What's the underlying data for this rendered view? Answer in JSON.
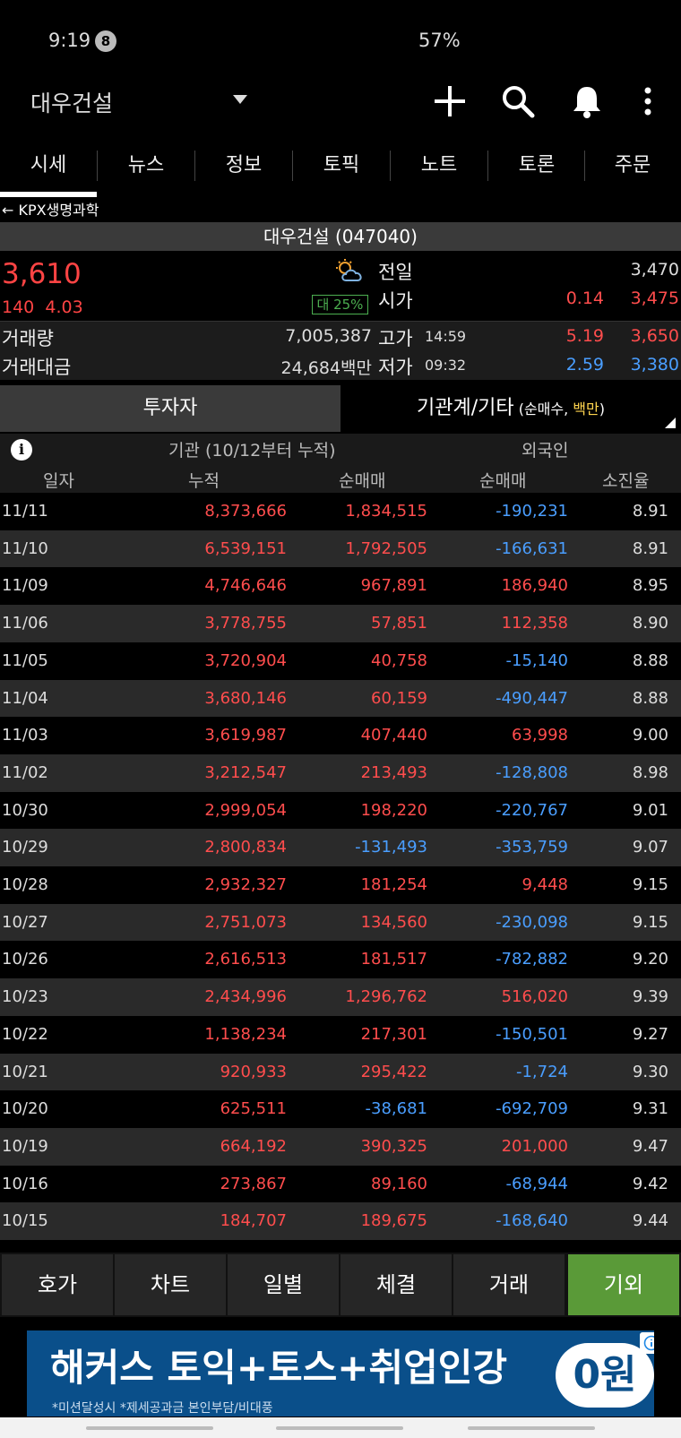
{
  "status_bar": {
    "time": "9:19",
    "notification_count": "8",
    "battery": "57%"
  },
  "app_bar": {
    "stock_name": "대우건설",
    "icons": [
      "plus-icon",
      "search-icon",
      "bell-icon",
      "more-icon"
    ]
  },
  "tabs": [
    {
      "label": "시세",
      "active": true
    },
    {
      "label": "뉴스"
    },
    {
      "label": "정보"
    },
    {
      "label": "토픽"
    },
    {
      "label": "노트"
    },
    {
      "label": "토론"
    },
    {
      "label": "주문"
    }
  ],
  "back_link": "← KPX생명과학",
  "title": "대우건설 (047040)",
  "quote": {
    "price": "3,610",
    "change": "140",
    "change_pct": "4.03",
    "vi_badge": "대 25%",
    "prev_close_label": "전일",
    "prev_close": "3,470",
    "open_label": "시가",
    "open_pct": "0.14",
    "open": "3,475",
    "volume_label": "거래량",
    "volume": "7,005,387",
    "high_label": "고가",
    "high_time": "14:59",
    "high_pct": "5.19",
    "high": "3,650",
    "value_label": "거래대금",
    "value": "24,684백만",
    "low_label": "저가",
    "low_time": "09:32",
    "low_pct": "2.59",
    "low": "3,380"
  },
  "subtabs": {
    "left": "투자자",
    "right_main": "기관계/기타",
    "right_paren_open": " (순매수, ",
    "right_unit": "백만",
    "right_paren_close": ")"
  },
  "table": {
    "group_inst": "기관 (10/12부터 누적)",
    "group_foreign": "외국인",
    "col_date": "일자",
    "col_cum": "누적",
    "col_inst_net": "순매매",
    "col_foreign_net": "순매매",
    "col_exhaust": "소진율",
    "rows": [
      {
        "date": "11/11",
        "cum": "8,373,666",
        "inst": "1,834,515",
        "foreign": "-190,231",
        "rate": "8.91"
      },
      {
        "date": "11/10",
        "cum": "6,539,151",
        "inst": "1,792,505",
        "foreign": "-166,631",
        "rate": "8.91"
      },
      {
        "date": "11/09",
        "cum": "4,746,646",
        "inst": "967,891",
        "foreign": "186,940",
        "rate": "8.95"
      },
      {
        "date": "11/06",
        "cum": "3,778,755",
        "inst": "57,851",
        "foreign": "112,358",
        "rate": "8.90"
      },
      {
        "date": "11/05",
        "cum": "3,720,904",
        "inst": "40,758",
        "foreign": "-15,140",
        "rate": "8.88"
      },
      {
        "date": "11/04",
        "cum": "3,680,146",
        "inst": "60,159",
        "foreign": "-490,447",
        "rate": "8.88"
      },
      {
        "date": "11/03",
        "cum": "3,619,987",
        "inst": "407,440",
        "foreign": "63,998",
        "rate": "9.00"
      },
      {
        "date": "11/02",
        "cum": "3,212,547",
        "inst": "213,493",
        "foreign": "-128,808",
        "rate": "8.98"
      },
      {
        "date": "10/30",
        "cum": "2,999,054",
        "inst": "198,220",
        "foreign": "-220,767",
        "rate": "9.01"
      },
      {
        "date": "10/29",
        "cum": "2,800,834",
        "inst": "-131,493",
        "foreign": "-353,759",
        "rate": "9.07"
      },
      {
        "date": "10/28",
        "cum": "2,932,327",
        "inst": "181,254",
        "foreign": "9,448",
        "rate": "9.15"
      },
      {
        "date": "10/27",
        "cum": "2,751,073",
        "inst": "134,560",
        "foreign": "-230,098",
        "rate": "9.15"
      },
      {
        "date": "10/26",
        "cum": "2,616,513",
        "inst": "181,517",
        "foreign": "-782,882",
        "rate": "9.20"
      },
      {
        "date": "10/23",
        "cum": "2,434,996",
        "inst": "1,296,762",
        "foreign": "516,020",
        "rate": "9.39"
      },
      {
        "date": "10/22",
        "cum": "1,138,234",
        "inst": "217,301",
        "foreign": "-150,501",
        "rate": "9.27"
      },
      {
        "date": "10/21",
        "cum": "920,933",
        "inst": "295,422",
        "foreign": "-1,724",
        "rate": "9.30"
      },
      {
        "date": "10/20",
        "cum": "625,511",
        "inst": "-38,681",
        "foreign": "-692,709",
        "rate": "9.31"
      },
      {
        "date": "10/19",
        "cum": "664,192",
        "inst": "390,325",
        "foreign": "201,000",
        "rate": "9.47"
      },
      {
        "date": "10/16",
        "cum": "273,867",
        "inst": "89,160",
        "foreign": "-68,944",
        "rate": "9.42"
      },
      {
        "date": "10/15",
        "cum": "184,707",
        "inst": "189,675",
        "foreign": "-168,640",
        "rate": "9.44"
      }
    ]
  },
  "bottom_nav": [
    {
      "label": "호가"
    },
    {
      "label": "차트"
    },
    {
      "label": "일별"
    },
    {
      "label": "체결"
    },
    {
      "label": "거래"
    },
    {
      "label": "기외",
      "active": true
    }
  ],
  "ad": {
    "brand": "해커스",
    "headline": " 토익+토스+취업인강",
    "badge": "0원",
    "fineprint": "*미션달성시 *제세공과금 본인부담/비대풍"
  },
  "colors": {
    "up": "#ff4d4d",
    "down": "#4a9eff",
    "active_nav": "#5a9a38",
    "accent": "#ffd54f"
  }
}
